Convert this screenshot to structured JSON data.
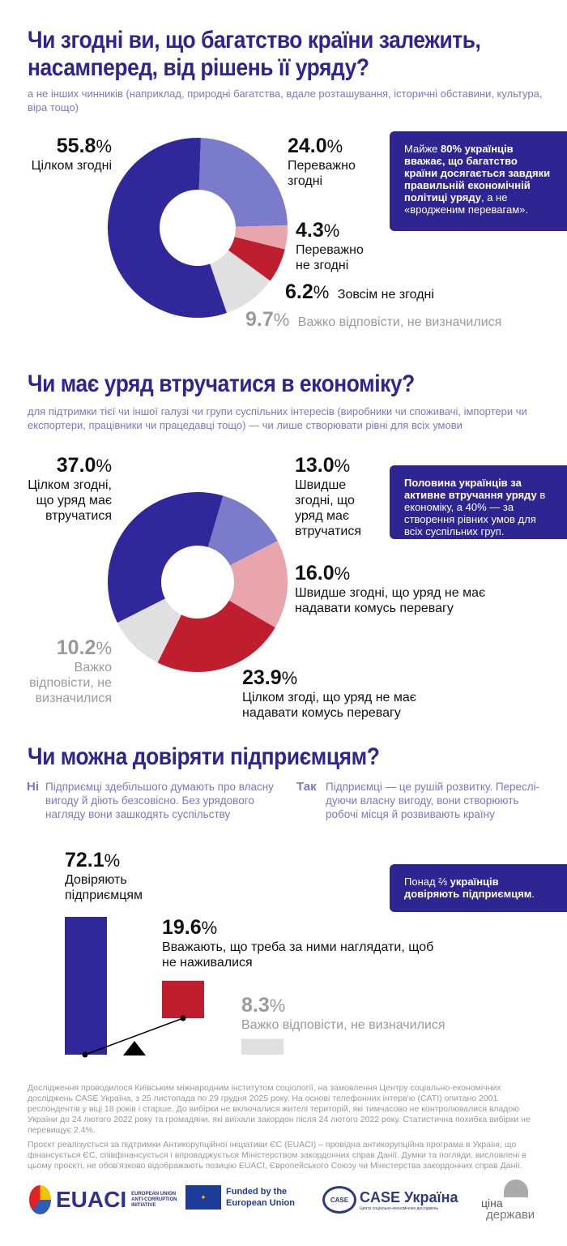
{
  "colors": {
    "dark": "#30279a",
    "light": "#7b7bcc",
    "pink": "#e8a5ab",
    "red": "#be1e2d",
    "grey": "#e0e0e0",
    "title": "#2e2592"
  },
  "s1": {
    "title": "Чи згодні ви, що багатство країни залежить, насамперед, від рішень її уряду?",
    "subtitle": "а не інших чинників (наприклад, природні багатства, вдале розташування, історичні обставини, культура, віра тощо)",
    "callout": {
      "pre": "Майже ",
      "b1": "80% українців вважає, що багатство країни досягається завдяки правильній економічній політиці уряду",
      "post": ", а не «вродженим перевагам»."
    }
  },
  "s2": {
    "title": "Чи має уряд втручатися в економіку?",
    "subtitle": "для підтримки тієї чи іншої галузі чи групи суспільних інтересів (виробники чи споживачі, імпортери чи експортери, працівники чи працедавці тощо) — чи лише створювати рівні для всіх умови",
    "callout": {
      "b1": "Половина українців за активне втручання уряду",
      "post": " в економіку, а 40% — за створення рівних умов для всіх суспільних груп."
    }
  },
  "s3": {
    "title": "Чи можна довіряти підприємцям?",
    "no_label": "Ні",
    "no_text": "Підприємці здебільшого думають про власну вигоду й діють безсовісно. Без урядового нагляду вони зашкодять суспільству",
    "yes_label": "Так",
    "yes_text": "Підприємці — це рушій розвитку. Переслі­дуючи власну вигоду, вони створюють робочі місця й розвивають країну",
    "callout": {
      "pre": "Понад ⅔ ",
      "b1": "українців довіряють підприємцям",
      "post": "."
    }
  },
  "chart_data": [
    {
      "type": "pie",
      "variant": "donut",
      "slices": [
        {
          "label": "Переважно згодні",
          "value": 24.0,
          "color": "#7b7bcc"
        },
        {
          "label": "Переважно не згодні",
          "value": 4.3,
          "color": "#e8a5ab"
        },
        {
          "label": "Зовсім не згодні",
          "value": 6.2,
          "color": "#be1e2d"
        },
        {
          "label": "Важко відповісти, не визначилися",
          "value": 9.7,
          "color": "#e0e0e0"
        },
        {
          "label": "Цілком згодні",
          "value": 55.8,
          "color": "#30279a"
        }
      ]
    },
    {
      "type": "pie",
      "variant": "donut",
      "slices": [
        {
          "label": "Швидше згодні, що уряд має втручатися",
          "value": 13.0,
          "color": "#7b7bcc"
        },
        {
          "label": "Швидше згодні, що уряд не має надавати комусь перевагу",
          "value": 16.0,
          "color": "#e8a5ab"
        },
        {
          "label": "Цілком згоді, що уряд не має надавати комусь перевагу",
          "value": 23.9,
          "color": "#be1e2d"
        },
        {
          "label": "Важко відповісти, не визначилися",
          "value": 10.2,
          "color": "#e0e0e0"
        },
        {
          "label": "Цілком згодні, що уряд має втручатися",
          "value": 37.0,
          "color": "#30279a"
        }
      ]
    },
    {
      "type": "bar",
      "categories": [
        "Довіряють підприємцям",
        "Вважають, що треба за ними наглядати, щоб не наживалися",
        "Важко відповісти, не визначилися"
      ],
      "values": [
        72.1,
        19.6,
        8.3
      ],
      "colors": [
        "#30279a",
        "#be1e2d",
        "#e0e0e0"
      ]
    }
  ],
  "pct_sign": "%",
  "footer": {
    "p1": "Дослідження проводилося Київським міжнародним інститутом соціології, на замовлення Центру соціально-економічних досліджень CASE Україна, з 25 листопада по 29 грудня 2025 року. На основі телефонних інтерв'ю (CATI) опитано 2001 респондентів у віці 18 років і старше. До вибірки не включалися жителі територій, які тимчасово не контролювалися владою України до 24 лютого 2022 року та громадяни, які виїхали закордон після 24 лютого 2022 року. Статистична похибка вибірки не перевищує 2.4%.",
    "p2": "Проєкт реалізується за підтримки Антикорупційної ініціативи ЄС (EUACI) – провідна антикорупційна програма в Україні, що фінансується ЄС, співфінансується і впроваджується Міністерством закордонних справ Данії. Думки та погляди, висловлені в цьому проєкті, не обов'язково відображають позицію EUACI, Європейського Союзу чи Міністерства закордонних справ Данії."
  },
  "logos": {
    "euaci": "EUACI",
    "euaci_sub": "EUROPEAN UNION ANTI-CORRUPTION INITIATIVE",
    "eu": "Funded by the European Union",
    "case": "CASE Україна",
    "case_sub": "Центр соціально-економічних досліджень",
    "case_badge": "CASE",
    "cina1": "ціна",
    "cina2": "держави"
  }
}
